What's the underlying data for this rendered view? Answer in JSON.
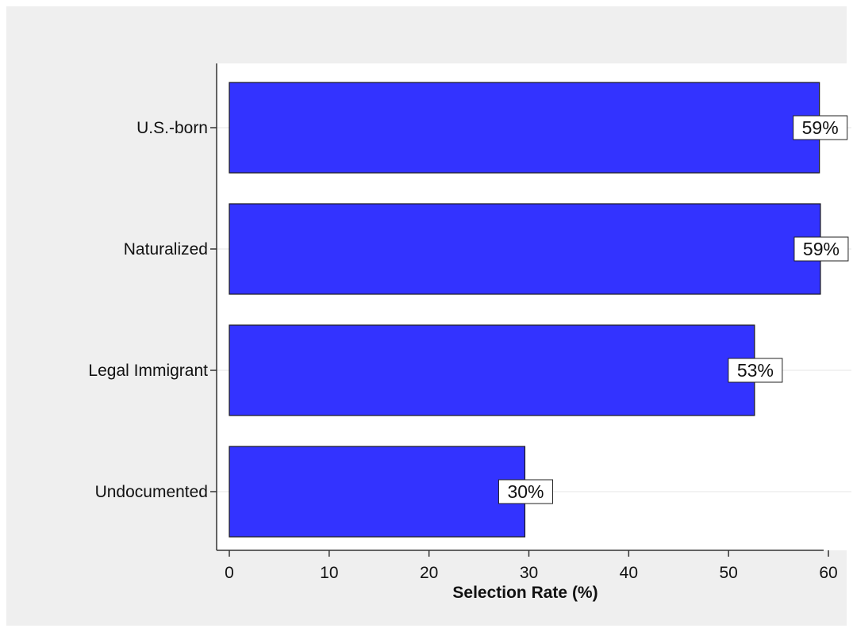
{
  "chart_data": {
    "type": "bar",
    "orientation": "horizontal",
    "categories": [
      "U.S.-born",
      "Naturalized",
      "Legal Immigrant",
      "Undocumented"
    ],
    "values": [
      59.1,
      59.2,
      52.6,
      29.6
    ],
    "data_labels": [
      "59%",
      "59%",
      "53%",
      "30%"
    ],
    "xlabel": "Selection Rate (%)",
    "ylabel": "",
    "xlim": [
      0,
      60
    ],
    "xticks": [
      0,
      10,
      20,
      30,
      40,
      50,
      60
    ],
    "grid": true,
    "bar_color": "#3333ff",
    "bar_edge_color": "#1a1a1a",
    "plot_background": "#ffffff",
    "outer_background": "#efefef"
  }
}
